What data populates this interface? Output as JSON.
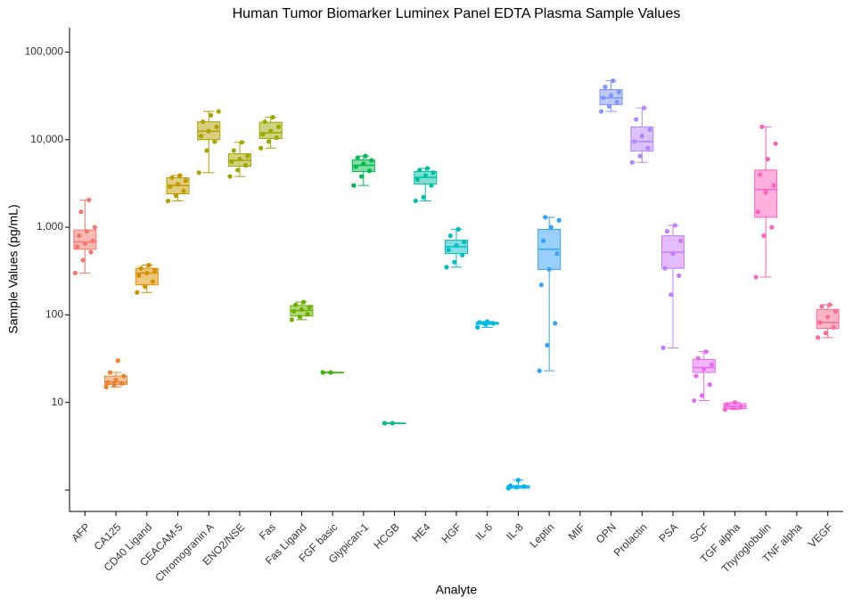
{
  "chart_data": {
    "type": "box",
    "title": "Human Tumor Biomarker Luminex Panel EDTA Plasma Sample Values",
    "x_label": "Analyte",
    "y_label": "Sample Values (pg/mL)",
    "log_y": true,
    "ylim": [
      0.57,
      190000
    ],
    "yticks": [
      {
        "value": 1,
        "label": null
      },
      10,
      100,
      {
        "value": 1000,
        "label": "1,000"
      },
      {
        "value": 10000,
        "label": "10,000"
      },
      {
        "value": 100000,
        "label": "100,000"
      }
    ],
    "categories": [
      "AFP",
      "CA125",
      "CD40 Ligand",
      "CEACAM-5",
      "Chromogranin A",
      "ENO2/NSE",
      "Fas",
      "Fas Ligand",
      "FGF basic",
      "Glypican-1",
      "HCGB",
      "HE4",
      "HGF",
      "IL-6",
      "IL-8",
      "Leptin",
      "MIF",
      "OPN",
      "Prolactin",
      "PSA",
      "SCF",
      "TGF alpha",
      "Thyroglobulin",
      "TNF alpha",
      "VEGF"
    ],
    "colors": [
      "#F8766D",
      "#EA8331",
      "#D89000",
      "#C09B00",
      "#B0A000",
      "#A3A500",
      "#9AA800",
      "#6BB100",
      "#39B600",
      "#00BB4E",
      "#00BF7D",
      "#00C1A3",
      "#00BFC4",
      "#00BAE0",
      "#00B0F6",
      "#35A2FF",
      "#5E9CFF",
      "#7F96FF",
      "#B385FF",
      "#C77CFF",
      "#E76BF3",
      "#FA62DB",
      "#FF62BC",
      "#FF6A98",
      "#FF6C91"
    ],
    "boxes": [
      {
        "low": 300,
        "q1": 560,
        "median": 680,
        "q3": 930,
        "high": 2050
      },
      {
        "low": 15,
        "q1": 16,
        "median": 17,
        "q3": 20,
        "high": 22
      },
      {
        "low": 180,
        "q1": 220,
        "median": 300,
        "q3": 340,
        "high": 370
      },
      {
        "low": 2000,
        "q1": 2410,
        "median": 3000,
        "q3": 3670,
        "high": 3900
      },
      {
        "low": 4200,
        "q1": 10000,
        "median": 12500,
        "q3": 16000,
        "high": 21000
      },
      {
        "low": 3800,
        "q1": 4980,
        "median": 5800,
        "q3": 6900,
        "high": 9300
      },
      {
        "low": 8000,
        "q1": 10300,
        "median": 12000,
        "q3": 15800,
        "high": 18000
      },
      {
        "low": 88,
        "q1": 97,
        "median": 112,
        "q3": 128,
        "high": 140
      },
      {
        "low": 22,
        "q1": 22,
        "median": 22,
        "q3": 22,
        "high": 22
      },
      {
        "low": 3000,
        "q1": 4330,
        "median": 5100,
        "q3": 5860,
        "high": 6500
      },
      {
        "low": 5.8,
        "q1": 5.8,
        "median": 5.8,
        "q3": 5.8,
        "high": 5.8
      },
      {
        "low": 2000,
        "q1": 3120,
        "median": 3700,
        "q3": 4330,
        "high": 4700
      },
      {
        "low": 350,
        "q1": 500,
        "median": 600,
        "q3": 711,
        "high": 950
      },
      {
        "low": 72,
        "q1": 78,
        "median": 80,
        "q3": 82,
        "high": 84
      },
      {
        "low": 1.05,
        "q1": 1.05,
        "median": 1.1,
        "q3": 1.12,
        "high": 1.3
      },
      {
        "low": 23,
        "q1": 330,
        "median": 560,
        "q3": 944,
        "high": 1300
      },
      null,
      {
        "low": 21000,
        "q1": 25100,
        "median": 30000,
        "q3": 37300,
        "high": 47000
      },
      {
        "low": 5500,
        "q1": 7400,
        "median": 9500,
        "q3": 14000,
        "high": 23000
      },
      {
        "low": 42,
        "q1": 340,
        "median": 520,
        "q3": 800,
        "high": 1050
      },
      {
        "low": 10.5,
        "q1": 22,
        "median": 25,
        "q3": 31,
        "high": 38
      },
      {
        "low": 8.3,
        "q1": 8.5,
        "median": 9,
        "q3": 9.7,
        "high": 10
      },
      {
        "low": 270,
        "q1": 1300,
        "median": 2700,
        "q3": 4500,
        "high": 14000
      },
      null,
      {
        "low": 55,
        "q1": 70,
        "median": 82,
        "q3": 115,
        "high": 130
      }
    ],
    "points": [
      [
        300,
        420,
        520,
        600,
        650,
        700,
        800,
        900,
        1000,
        1500,
        2050
      ],
      [
        15,
        16,
        16.5,
        17,
        18,
        20,
        22,
        30
      ],
      [
        180,
        210,
        240,
        280,
        300,
        320,
        340,
        370
      ],
      [
        2000,
        2300,
        2600,
        2900,
        3100,
        3400,
        3700,
        3900
      ],
      [
        4200,
        7500,
        9500,
        11000,
        12500,
        14000,
        16000,
        19000,
        21000
      ],
      [
        3800,
        4500,
        5100,
        5600,
        6000,
        6500,
        7500,
        9300
      ],
      [
        8000,
        9500,
        10500,
        11500,
        12500,
        14000,
        16000,
        18000
      ],
      [
        88,
        95,
        102,
        110,
        115,
        122,
        130,
        140
      ],
      [
        22,
        22
      ],
      [
        3000,
        3800,
        4400,
        4900,
        5300,
        5800,
        6200,
        6500
      ],
      [
        5.8,
        5.8
      ],
      [
        2000,
        2200,
        3000,
        3500,
        3900,
        4200,
        4500,
        4700
      ],
      [
        350,
        400,
        480,
        550,
        620,
        680,
        800,
        950
      ],
      [
        72,
        78,
        80,
        82,
        84
      ],
      [
        1.05,
        1.08,
        1.1,
        1.12,
        1.3
      ],
      [
        23,
        45,
        80,
        220,
        330,
        500,
        700,
        1000,
        1200,
        1300
      ],
      [],
      [
        21000,
        24000,
        27000,
        30000,
        32000,
        35000,
        40000,
        47000
      ],
      [
        5500,
        6500,
        8000,
        9500,
        11000,
        13000,
        17000,
        23000
      ],
      [
        42,
        170,
        280,
        340,
        500,
        700,
        900,
        1050
      ],
      [
        10.5,
        12,
        16,
        20,
        24,
        27,
        32,
        38
      ],
      [
        8.3,
        8.7,
        9,
        9.5,
        10
      ],
      [
        270,
        800,
        1000,
        1500,
        2500,
        3000,
        4000,
        6000,
        9000,
        14000
      ],
      [],
      [
        55,
        62,
        72,
        82,
        95,
        110,
        125,
        130
      ]
    ]
  }
}
